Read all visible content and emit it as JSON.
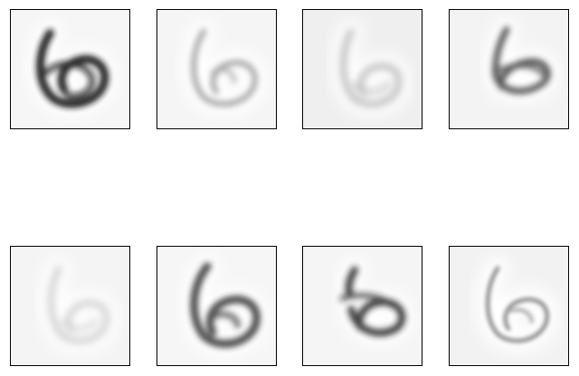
{
  "panels": [
    {
      "id": "sample-1",
      "background": "#f6f6f6",
      "stroke": "#141414",
      "intensity": 0.95,
      "variant": "heavy"
    },
    {
      "id": "sample-2",
      "background": "#f5f5f5",
      "stroke": "#5a5a5a",
      "intensity": 0.55,
      "variant": "light"
    },
    {
      "id": "sample-3",
      "background": "#efefef",
      "stroke": "#6a6a6a",
      "intensity": 0.5,
      "variant": "faint"
    },
    {
      "id": "sample-4",
      "background": "#f3f3f3",
      "stroke": "#2a2a2a",
      "intensity": 0.8,
      "variant": "tilted"
    },
    {
      "id": "sample-5",
      "background": "#f4f4f4",
      "stroke": "#7a7a7a",
      "intensity": 0.4,
      "variant": "faint"
    },
    {
      "id": "sample-6",
      "background": "#f6f6f6",
      "stroke": "#262626",
      "intensity": 0.8,
      "variant": "bold"
    },
    {
      "id": "sample-7",
      "background": "#f5f5f5",
      "stroke": "#1e1e1e",
      "intensity": 0.85,
      "variant": "broken"
    },
    {
      "id": "sample-8",
      "background": "#f2f2f2",
      "stroke": "#4a4a4a",
      "intensity": 0.65,
      "variant": "thin"
    }
  ]
}
